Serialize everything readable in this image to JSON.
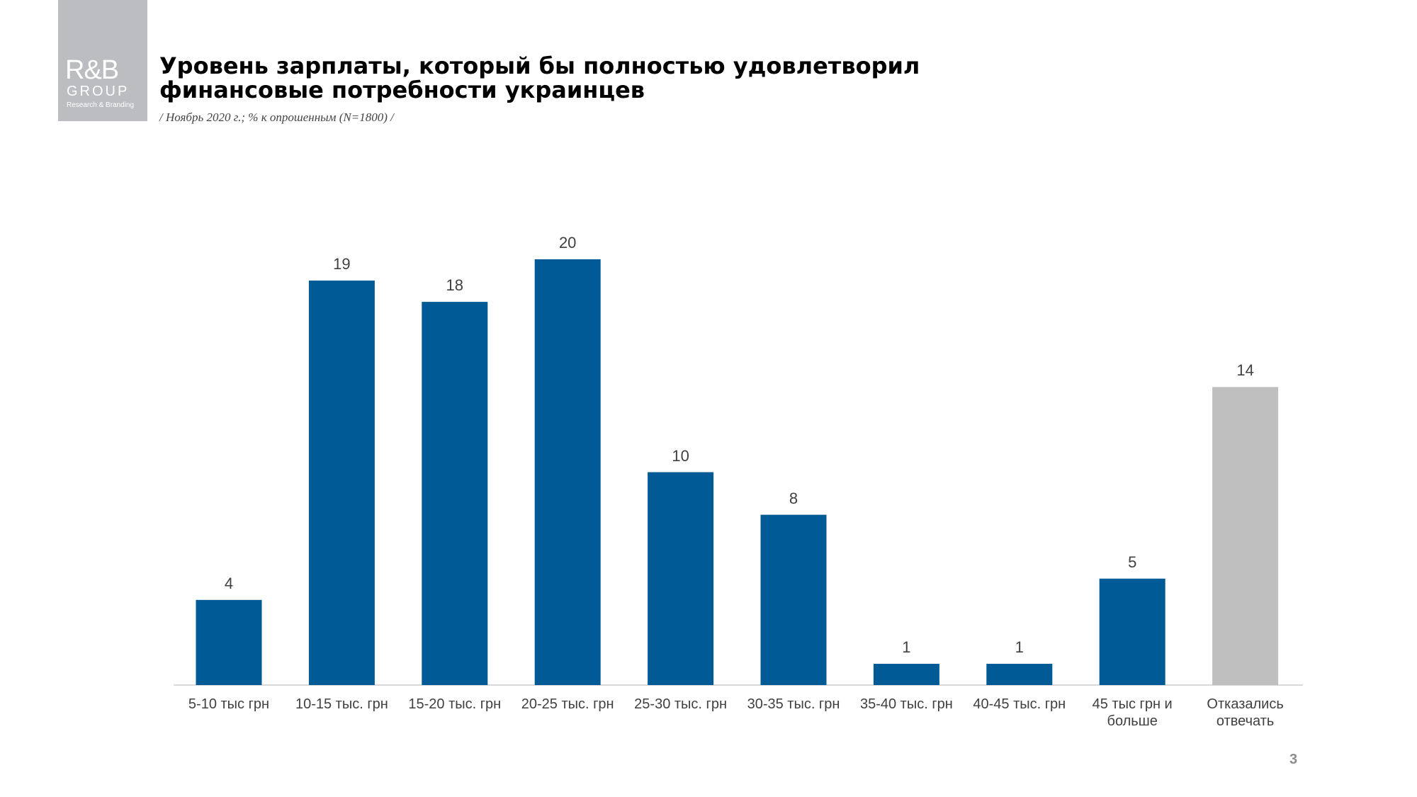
{
  "logo": {
    "name": "R&B",
    "group": "GROUP",
    "tagline": "Research & Branding"
  },
  "chart_data": {
    "type": "bar",
    "title": "Уровень зарплаты, который бы полностью удовлетворил\nфинансовые потребности украинцев",
    "subtitle": "/ Ноябрь 2020 г.; % к опрошенным (N=1800) /",
    "categories": [
      "5-10 тыс грн",
      "10-15 тыс. грн",
      "15-20 тыс. грн",
      "20-25 тыс. грн",
      "25-30 тыс. грн",
      "30-35 тыс. грн",
      "35-40 тыс. грн",
      "40-45 тыс. грн",
      "45 тыс грн и\nбольше",
      "Отказались\nотвечать"
    ],
    "values": [
      4,
      19,
      18,
      20,
      10,
      8,
      1,
      1,
      5,
      14
    ],
    "colors": [
      "#005a96",
      "#005a96",
      "#005a96",
      "#005a96",
      "#005a96",
      "#005a96",
      "#005a96",
      "#005a96",
      "#005a96",
      "#bfbfbf"
    ]
  },
  "page_number": "3"
}
